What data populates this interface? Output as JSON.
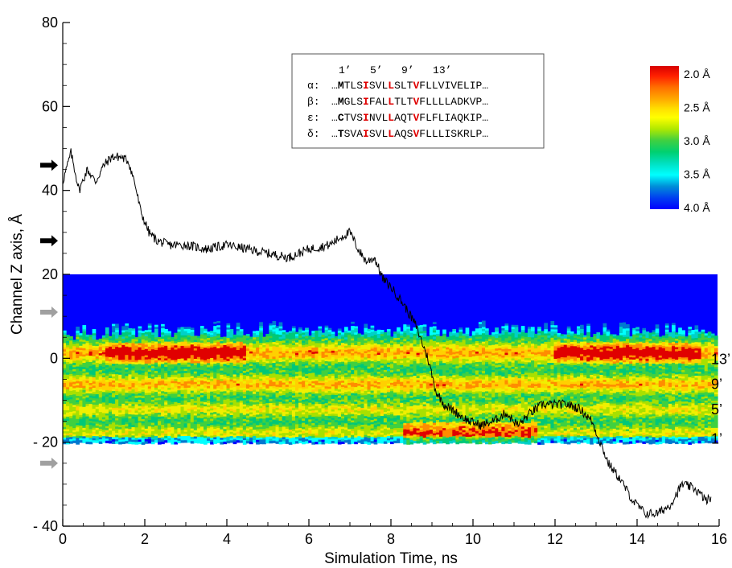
{
  "chart_data": {
    "type": "line",
    "xlabel": "Simulation Time, ns",
    "ylabel": "Channel Z axis, Å",
    "xlim": [
      0,
      16
    ],
    "ylim": [
      -40,
      80
    ],
    "x_ticks": [
      "0",
      "2",
      "4",
      "6",
      "8",
      "10",
      "12",
      "14",
      "16"
    ],
    "y_ticks": [
      "- 40",
      "- 20",
      "0",
      "20",
      "40",
      "60",
      "80"
    ],
    "series": [
      {
        "x": [
          0,
          0.2,
          0.4,
          0.6,
          0.8,
          1.0,
          1.2,
          1.4,
          1.6,
          1.75,
          1.9,
          2.1,
          2.3,
          2.6,
          3.0,
          3.5,
          4.0,
          4.5,
          5.0,
          5.5,
          6.0,
          6.5,
          6.8,
          7.0,
          7.2,
          7.4,
          7.6,
          7.8,
          8.0,
          8.3,
          8.6,
          8.9,
          9.1,
          9.3,
          9.6,
          9.9,
          10.2,
          10.5,
          10.8,
          11.1,
          11.4,
          11.7,
          12.0,
          12.3,
          12.6,
          12.9,
          13.1,
          13.3,
          13.6,
          13.9,
          14.2,
          14.5,
          14.8,
          15.1,
          15.4,
          15.7,
          15.8
        ],
        "y": [
          42,
          49,
          40,
          45,
          42,
          46,
          48,
          48,
          47,
          42,
          35,
          30,
          28,
          27,
          27,
          26,
          27,
          26,
          25,
          24,
          26,
          27,
          29,
          30,
          26,
          23,
          24,
          19,
          17,
          13,
          8,
          0,
          -8,
          -11,
          -13,
          -15,
          -16,
          -15,
          -13,
          -16,
          -13,
          -11,
          -11,
          -11,
          -12,
          -15,
          -20,
          -25,
          -29,
          -34,
          -37,
          -37,
          -35,
          -30,
          -31,
          -34,
          -33
        ]
      }
    ],
    "heatmap": {
      "x_range": [
        0,
        16
      ],
      "z_range": [
        -20,
        20
      ],
      "colorbar_labels": [
        "2.0 Å",
        "2.5 Å",
        "3.0 Å",
        "3.5 Å",
        "4.0 Å"
      ],
      "colorbar_colors": [
        "#e00000",
        "#ff8c00",
        "#ffd000",
        "#f0f000",
        "#a8e000",
        "#40d040",
        "#00c878",
        "#00d0c8",
        "#00ffff",
        "#0078d0",
        "#0000ff"
      ],
      "bands": [
        {
          "z": 1,
          "level": "high",
          "note": "13'"
        },
        {
          "z": -6,
          "level": "high",
          "note": "9'"
        },
        {
          "z": -12,
          "level": "mid",
          "note": "5'"
        },
        {
          "z": -18,
          "level": "mid",
          "note": "1'"
        }
      ]
    },
    "right_labels": [
      {
        "text": "13’",
        "z": 0
      },
      {
        "text": "9’",
        "z": -6
      },
      {
        "text": "5’",
        "z": -12
      },
      {
        "text": "1’",
        "z": -19
      }
    ],
    "arrows": [
      {
        "z": 46,
        "color": "#000000"
      },
      {
        "z": 28,
        "color": "#000000"
      },
      {
        "z": 11,
        "color": "#a0a0a0"
      },
      {
        "z": -25,
        "color": "#a0a0a0"
      }
    ],
    "sequence_box": {
      "positions": "1’   5’   9’   13’",
      "rows": [
        {
          "label": "α:",
          "parts": [
            "…",
            "M",
            "TLS",
            "I",
            "SVL",
            "L",
            "SLT",
            "V",
            "FLLVIVELIP…"
          ]
        },
        {
          "label": "β:",
          "parts": [
            "…",
            "M",
            "GLS",
            "I",
            "FAL",
            "L",
            "TLT",
            "V",
            "FLLLLADKVP…"
          ]
        },
        {
          "label": "ε:",
          "parts": [
            "…",
            "C",
            "TVS",
            "I",
            "NVL",
            "L",
            "AQT",
            "V",
            "FLFLIAQKIP…"
          ]
        },
        {
          "label": "δ:",
          "parts": [
            "…",
            "T",
            "SVA",
            "I",
            "SVL",
            "L",
            "AQS",
            "V",
            "FLLLISKRLP…"
          ]
        }
      ]
    }
  }
}
